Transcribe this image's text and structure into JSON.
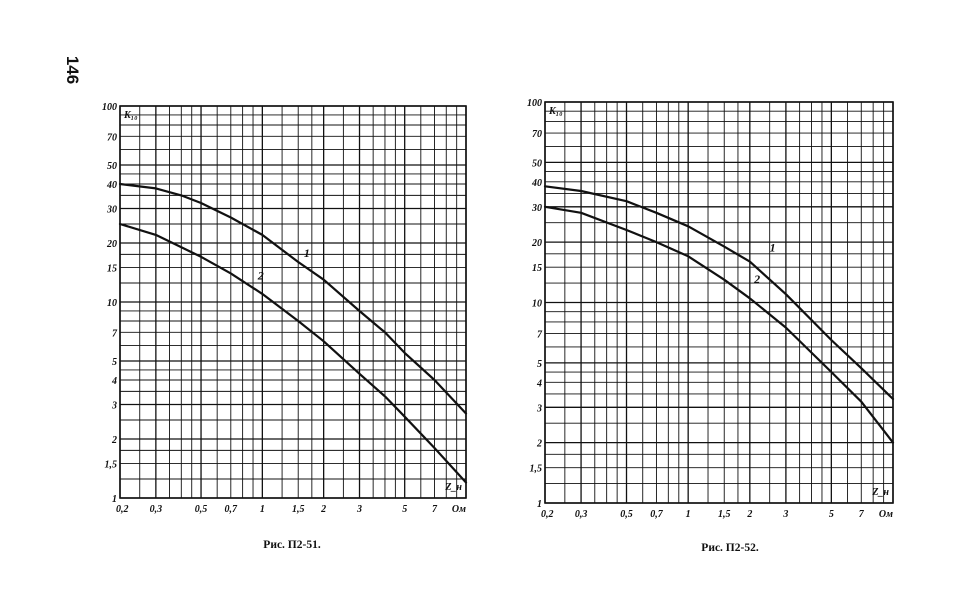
{
  "page_number": "146",
  "chart_data": [
    {
      "type": "line",
      "caption": "Рис. П2-51.",
      "xlabel": "Z_н",
      "ylabel": "K₁₀",
      "x_scale": "log",
      "y_scale": "log",
      "xlim": [
        0.2,
        10
      ],
      "ylim": [
        1,
        100
      ],
      "x_ticks": [
        {
          "v": 0.2,
          "label": "0,2"
        },
        {
          "v": 0.3,
          "label": "0,3"
        },
        {
          "v": 0.5,
          "label": "0,5"
        },
        {
          "v": 0.7,
          "label": "0,7"
        },
        {
          "v": 1,
          "label": "1"
        },
        {
          "v": 1.5,
          "label": "1,5"
        },
        {
          "v": 2,
          "label": "2"
        },
        {
          "v": 3,
          "label": "3"
        },
        {
          "v": 5,
          "label": "5"
        },
        {
          "v": 7,
          "label": "7"
        },
        {
          "v": 10,
          "label": "Ом"
        }
      ],
      "y_ticks": [
        {
          "v": 100,
          "label": "100"
        },
        {
          "v": 70,
          "label": "70"
        },
        {
          "v": 50,
          "label": "50"
        },
        {
          "v": 40,
          "label": "40"
        },
        {
          "v": 30,
          "label": "30"
        },
        {
          "v": 20,
          "label": "20"
        },
        {
          "v": 15,
          "label": "15"
        },
        {
          "v": 10,
          "label": "10"
        },
        {
          "v": 7,
          "label": "7"
        },
        {
          "v": 5,
          "label": "5"
        },
        {
          "v": 4,
          "label": "4"
        },
        {
          "v": 3,
          "label": "3"
        },
        {
          "v": 2,
          "label": "2"
        },
        {
          "v": 1.5,
          "label": "1,5"
        },
        {
          "v": 1,
          "label": "1"
        }
      ],
      "grid": true,
      "series": [
        {
          "name": "1",
          "x": [
            0.2,
            0.3,
            0.4,
            0.5,
            0.7,
            1.0,
            1.5,
            2.0,
            3.0,
            4.0,
            5.0,
            7.0,
            10.0
          ],
          "y": [
            40,
            38,
            35,
            32,
            27,
            22,
            16,
            13,
            9,
            7,
            5.5,
            4,
            2.7
          ],
          "label_at": [
            1.6,
            17
          ]
        },
        {
          "name": "2",
          "x": [
            0.2,
            0.3,
            0.5,
            0.7,
            1.0,
            1.5,
            2.0,
            3.0,
            4.0,
            5.0,
            7.0,
            10.0
          ],
          "y": [
            25,
            22,
            17,
            14,
            11,
            8,
            6.3,
            4.3,
            3.3,
            2.6,
            1.8,
            1.2
          ],
          "label_at": [
            0.95,
            13
          ]
        }
      ]
    },
    {
      "type": "line",
      "caption": "Рис. П2-52.",
      "xlabel": "Z_н",
      "ylabel": "K₁₀",
      "x_scale": "log",
      "y_scale": "log",
      "xlim": [
        0.2,
        10
      ],
      "ylim": [
        1,
        100
      ],
      "x_ticks": [
        {
          "v": 0.2,
          "label": "0,2"
        },
        {
          "v": 0.3,
          "label": "0,3"
        },
        {
          "v": 0.5,
          "label": "0,5"
        },
        {
          "v": 0.7,
          "label": "0,7"
        },
        {
          "v": 1,
          "label": "1"
        },
        {
          "v": 1.5,
          "label": "1,5"
        },
        {
          "v": 2,
          "label": "2"
        },
        {
          "v": 3,
          "label": "3"
        },
        {
          "v": 5,
          "label": "5"
        },
        {
          "v": 7,
          "label": "7"
        },
        {
          "v": 10,
          "label": "Ом"
        }
      ],
      "y_ticks": [
        {
          "v": 100,
          "label": "100"
        },
        {
          "v": 70,
          "label": "70"
        },
        {
          "v": 50,
          "label": "50"
        },
        {
          "v": 40,
          "label": "40"
        },
        {
          "v": 30,
          "label": "30"
        },
        {
          "v": 20,
          "label": "20"
        },
        {
          "v": 15,
          "label": "15"
        },
        {
          "v": 10,
          "label": "10"
        },
        {
          "v": 7,
          "label": "7"
        },
        {
          "v": 5,
          "label": "5"
        },
        {
          "v": 4,
          "label": "4"
        },
        {
          "v": 3,
          "label": "3"
        },
        {
          "v": 2,
          "label": "2"
        },
        {
          "v": 1.5,
          "label": "1,5"
        },
        {
          "v": 1,
          "label": "1"
        }
      ],
      "grid": true,
      "series": [
        {
          "name": "1",
          "x": [
            0.2,
            0.3,
            0.5,
            0.7,
            1.0,
            1.5,
            2.0,
            3.0,
            5.0,
            7.0,
            10.0
          ],
          "y": [
            38,
            36,
            32,
            28,
            24,
            19,
            16,
            11,
            6.5,
            4.7,
            3.3
          ],
          "label_at": [
            2.5,
            18
          ]
        },
        {
          "name": "2",
          "x": [
            0.2,
            0.3,
            0.5,
            0.7,
            1.0,
            1.5,
            2.0,
            3.0,
            5.0,
            7.0,
            10.0
          ],
          "y": [
            30,
            28,
            23,
            20,
            17,
            13,
            10.5,
            7.5,
            4.5,
            3.2,
            2.0
          ],
          "label_at": [
            2.1,
            12.5
          ]
        }
      ]
    }
  ]
}
